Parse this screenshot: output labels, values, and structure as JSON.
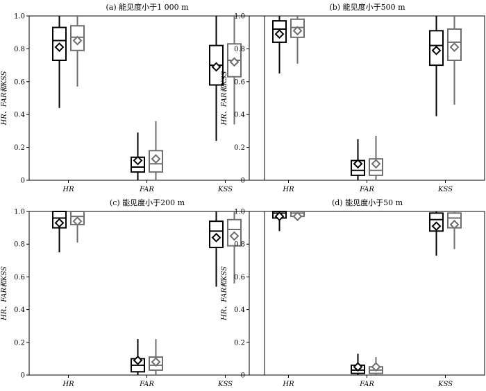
{
  "chart_data": [
    {
      "type": "box",
      "title": "(a) 能见度小于1 000 m",
      "ylabel": "HR、FAR和KSS",
      "categories": [
        "HR",
        "FAR",
        "KSS"
      ],
      "ylim": [
        0,
        1.0
      ],
      "yticks": [
        "0",
        "0.2",
        "0.4",
        "0.6",
        "0.8",
        "1.0"
      ],
      "series": [
        {
          "color": "#000000",
          "boxes": [
            {
              "min": 0.44,
              "q1": 0.73,
              "median": 0.85,
              "q3": 0.93,
              "max": 1.0,
              "mean": 0.81
            },
            {
              "min": 0.0,
              "q1": 0.05,
              "median": 0.08,
              "q3": 0.14,
              "max": 0.29,
              "mean": 0.12
            },
            {
              "min": 0.24,
              "q1": 0.58,
              "median": 0.7,
              "q3": 0.82,
              "max": 1.0,
              "mean": 0.69
            }
          ]
        },
        {
          "color": "#6e6e6e",
          "boxes": [
            {
              "min": 0.57,
              "q1": 0.79,
              "median": 0.87,
              "q3": 0.94,
              "max": 1.0,
              "mean": 0.85
            },
            {
              "min": 0.0,
              "q1": 0.05,
              "median": 0.1,
              "q3": 0.18,
              "max": 0.36,
              "mean": 0.13
            },
            {
              "min": 0.34,
              "q1": 0.63,
              "median": 0.73,
              "q3": 0.83,
              "max": 1.0,
              "mean": 0.72
            }
          ]
        }
      ]
    },
    {
      "type": "box",
      "title": "(b) 能见度小于500 m",
      "ylabel": "HR、FAR和KSS",
      "categories": [
        "HR",
        "FAR",
        "KSS"
      ],
      "ylim": [
        0,
        1.0
      ],
      "yticks": [
        "0",
        "0.2",
        "0.4",
        "0.6",
        "0.8",
        "1.0"
      ],
      "series": [
        {
          "color": "#000000",
          "boxes": [
            {
              "min": 0.65,
              "q1": 0.84,
              "median": 0.92,
              "q3": 0.97,
              "max": 1.0,
              "mean": 0.89
            },
            {
              "min": 0.0,
              "q1": 0.03,
              "median": 0.06,
              "q3": 0.12,
              "max": 0.25,
              "mean": 0.1
            },
            {
              "min": 0.39,
              "q1": 0.7,
              "median": 0.82,
              "q3": 0.91,
              "max": 1.0,
              "mean": 0.79
            }
          ]
        },
        {
          "color": "#6e6e6e",
          "boxes": [
            {
              "min": 0.71,
              "q1": 0.87,
              "median": 0.93,
              "q3": 0.98,
              "max": 1.0,
              "mean": 0.91
            },
            {
              "min": 0.0,
              "q1": 0.03,
              "median": 0.06,
              "q3": 0.13,
              "max": 0.27,
              "mean": 0.1
            },
            {
              "min": 0.46,
              "q1": 0.73,
              "median": 0.84,
              "q3": 0.92,
              "max": 1.0,
              "mean": 0.81
            }
          ]
        }
      ]
    },
    {
      "type": "box",
      "title": "(c) 能见度小于200 m",
      "ylabel": "HR、FAR和KSS",
      "categories": [
        "HR",
        "FAR",
        "KSS"
      ],
      "ylim": [
        0,
        1.0
      ],
      "yticks": [
        "0",
        "0.2",
        "0.4",
        "0.6",
        "0.8",
        "1.0"
      ],
      "series": [
        {
          "color": "#000000",
          "boxes": [
            {
              "min": 0.75,
              "q1": 0.9,
              "median": 0.96,
              "q3": 1.0,
              "max": 1.0,
              "mean": 0.93
            },
            {
              "min": 0.0,
              "q1": 0.02,
              "median": 0.06,
              "q3": 0.1,
              "max": 0.22,
              "mean": 0.09
            },
            {
              "min": 0.54,
              "q1": 0.78,
              "median": 0.88,
              "q3": 0.94,
              "max": 1.0,
              "mean": 0.84
            }
          ]
        },
        {
          "color": "#6e6e6e",
          "boxes": [
            {
              "min": 0.81,
              "q1": 0.92,
              "median": 0.97,
              "q3": 1.0,
              "max": 1.0,
              "mean": 0.94
            },
            {
              "min": 0.0,
              "q1": 0.03,
              "median": 0.06,
              "q3": 0.11,
              "max": 0.22,
              "mean": 0.08
            },
            {
              "min": 0.56,
              "q1": 0.79,
              "median": 0.89,
              "q3": 0.95,
              "max": 1.0,
              "mean": 0.85
            }
          ]
        }
      ]
    },
    {
      "type": "box",
      "title": "(d) 能见度小于50 m",
      "ylabel": "HR、FAR和KSS",
      "categories": [
        "HR",
        "FAR",
        "KSS"
      ],
      "ylim": [
        0,
        1.0
      ],
      "yticks": [
        "0",
        "0.2",
        "0.4",
        "0.6",
        "0.8",
        "1.0"
      ],
      "series": [
        {
          "color": "#000000",
          "boxes": [
            {
              "min": 0.88,
              "q1": 0.96,
              "median": 0.99,
              "q3": 1.0,
              "max": 1.0,
              "mean": 0.97
            },
            {
              "min": 0.0,
              "q1": 0.01,
              "median": 0.03,
              "q3": 0.06,
              "max": 0.13,
              "mean": 0.05
            },
            {
              "min": 0.73,
              "q1": 0.88,
              "median": 0.95,
              "q3": 0.99,
              "max": 1.0,
              "mean": 0.91
            }
          ]
        },
        {
          "color": "#6e6e6e",
          "boxes": [
            {
              "min": 0.96,
              "q1": 0.97,
              "median": 0.99,
              "q3": 1.0,
              "max": 1.0,
              "mean": 0.97
            },
            {
              "min": 0.0,
              "q1": 0.01,
              "median": 0.03,
              "q3": 0.05,
              "max": 0.11,
              "mean": 0.05
            },
            {
              "min": 0.77,
              "q1": 0.9,
              "median": 0.96,
              "q3": 0.99,
              "max": 1.0,
              "mean": 0.92
            }
          ]
        }
      ]
    }
  ]
}
